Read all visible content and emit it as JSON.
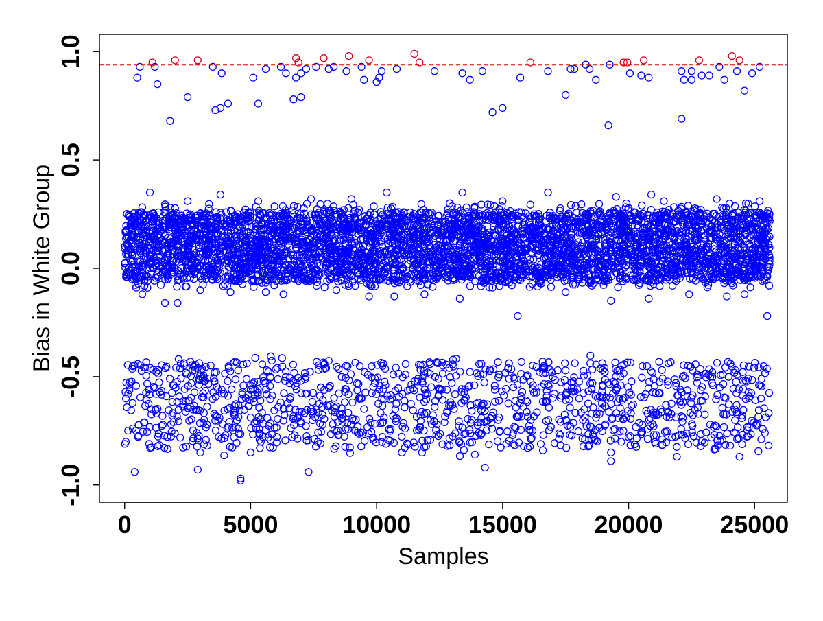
{
  "chart_data": {
    "type": "scatter",
    "title": "",
    "xlabel": "Samples",
    "ylabel": "Bias in White Group",
    "xlim": [
      -1000,
      26300
    ],
    "ylim": [
      -1.08,
      1.08
    ],
    "x_ticks": [
      0,
      5000,
      10000,
      15000,
      20000,
      25000
    ],
    "x_tick_labels": [
      "0",
      "5000",
      "10000",
      "15000",
      "20000",
      "25000"
    ],
    "y_ticks": [
      -1.0,
      -0.5,
      0.0,
      0.5,
      1.0
    ],
    "y_tick_labels": [
      "-1.0",
      "-0.5",
      "0.0",
      "0.5",
      "1.0"
    ],
    "grid": false,
    "marker": "open-circle",
    "threshold": {
      "y": 0.94,
      "color": "#e00000",
      "style": "dashed"
    },
    "colors": {
      "normal": "#0000ff",
      "outlier": "#d00020",
      "threshold": "#e00000"
    },
    "n_samples": 25600,
    "series": [
      {
        "color": "#d00020",
        "points": [
          [
            1100,
            0.95
          ],
          [
            2000,
            0.96
          ],
          [
            2900,
            0.96
          ],
          [
            6800,
            0.97
          ],
          [
            6900,
            0.95
          ],
          [
            7900,
            0.97
          ],
          [
            8900,
            0.98
          ],
          [
            9700,
            0.96
          ],
          [
            11500,
            0.99
          ],
          [
            11700,
            0.95
          ],
          [
            16100,
            0.95
          ],
          [
            19800,
            0.95
          ],
          [
            19950,
            0.95
          ],
          [
            20600,
            0.96
          ],
          [
            22800,
            0.96
          ],
          [
            24100,
            0.98
          ],
          [
            24400,
            0.96
          ]
        ]
      },
      {
        "color": "#0000ff",
        "points": [
          [
            500,
            0.88
          ],
          [
            600,
            0.93
          ],
          [
            1200,
            0.93
          ],
          [
            1300,
            0.85
          ],
          [
            1800,
            0.68
          ],
          [
            2500,
            0.79
          ],
          [
            3500,
            0.93
          ],
          [
            3600,
            0.73
          ],
          [
            3800,
            0.74
          ],
          [
            3850,
            0.9
          ],
          [
            4100,
            0.76
          ],
          [
            5100,
            0.88
          ],
          [
            5300,
            0.76
          ],
          [
            5600,
            0.92
          ],
          [
            6200,
            0.93
          ],
          [
            6400,
            0.9
          ],
          [
            6700,
            0.78
          ],
          [
            6800,
            0.88
          ],
          [
            7000,
            0.79
          ],
          [
            7000,
            0.9
          ],
          [
            7200,
            0.92
          ],
          [
            7600,
            0.93
          ],
          [
            8100,
            0.92
          ],
          [
            8300,
            0.93
          ],
          [
            8800,
            0.91
          ],
          [
            9400,
            0.93
          ],
          [
            9500,
            0.87
          ],
          [
            10000,
            0.86
          ],
          [
            10100,
            0.88
          ],
          [
            10200,
            0.91
          ],
          [
            10800,
            0.92
          ],
          [
            12300,
            0.91
          ],
          [
            13400,
            0.9
          ],
          [
            13700,
            0.87
          ],
          [
            14200,
            0.91
          ],
          [
            14600,
            0.72
          ],
          [
            15000,
            0.74
          ],
          [
            15700,
            0.88
          ],
          [
            16800,
            0.91
          ],
          [
            17500,
            0.8
          ],
          [
            17700,
            0.92
          ],
          [
            17850,
            0.92
          ],
          [
            18300,
            0.94
          ],
          [
            18450,
            0.92
          ],
          [
            18700,
            0.87
          ],
          [
            19200,
            0.66
          ],
          [
            19250,
            0.94
          ],
          [
            20050,
            0.9
          ],
          [
            20500,
            0.89
          ],
          [
            20800,
            0.88
          ],
          [
            22100,
            0.69
          ],
          [
            22100,
            0.91
          ],
          [
            22200,
            0.87
          ],
          [
            22500,
            0.91
          ],
          [
            22500,
            0.87
          ],
          [
            22900,
            0.89
          ],
          [
            23200,
            0.89
          ],
          [
            23600,
            0.93
          ],
          [
            23800,
            0.87
          ],
          [
            24300,
            0.91
          ],
          [
            24600,
            0.82
          ],
          [
            24900,
            0.9
          ],
          [
            25200,
            0.93
          ],
          [
            1000,
            0.35
          ],
          [
            3800,
            0.34
          ],
          [
            10400,
            0.35
          ],
          [
            13400,
            0.35
          ],
          [
            16800,
            0.35
          ],
          [
            20900,
            0.34
          ],
          [
            2500,
            0.31
          ],
          [
            5300,
            0.31
          ],
          [
            9000,
            0.32
          ],
          [
            15000,
            0.31
          ],
          [
            19500,
            0.33
          ],
          [
            23500,
            0.32
          ],
          [
            25200,
            0.31
          ],
          [
            7400,
            0.32
          ],
          [
            12900,
            0.3
          ],
          [
            21400,
            0.31
          ],
          [
            1600,
            -0.16
          ],
          [
            2100,
            -0.16
          ],
          [
            700,
            -0.12
          ],
          [
            3000,
            -0.1
          ],
          [
            4200,
            -0.11
          ],
          [
            6300,
            -0.12
          ],
          [
            8400,
            -0.1
          ],
          [
            10700,
            -0.13
          ],
          [
            13300,
            -0.14
          ],
          [
            15600,
            -0.22
          ],
          [
            19300,
            -0.15
          ],
          [
            20800,
            -0.14
          ],
          [
            23900,
            -0.13
          ],
          [
            24600,
            -0.12
          ],
          [
            25500,
            -0.22
          ],
          [
            11900,
            -0.12
          ],
          [
            17500,
            -0.11
          ],
          [
            22400,
            -0.12
          ],
          [
            5600,
            -0.11
          ],
          [
            9700,
            -0.13
          ],
          [
            400,
            -0.94
          ],
          [
            2900,
            -0.93
          ],
          [
            4600,
            -0.97
          ],
          [
            4600,
            -0.98
          ],
          [
            7300,
            -0.94
          ],
          [
            14300,
            -0.92
          ],
          [
            19300,
            -0.89
          ],
          [
            19300,
            -0.85
          ],
          [
            24400,
            -0.87
          ],
          [
            13900,
            -0.86
          ],
          [
            5000,
            -0.85
          ],
          [
            11000,
            -0.85
          ],
          [
            3000,
            -0.85
          ],
          [
            11800,
            -0.85
          ],
          [
            16600,
            -0.84
          ]
        ]
      }
    ],
    "generated_groups": [
      {
        "color": "#0000ff",
        "x_range": [
          0,
          25600
        ],
        "y_range": [
          -0.06,
          0.26
        ],
        "count": 3800
      },
      {
        "color": "#0000ff",
        "x_range": [
          0,
          25600
        ],
        "y_range": [
          -0.09,
          0.3
        ],
        "count": 900
      },
      {
        "color": "#0000ff",
        "x_range": [
          0,
          25600
        ],
        "y_range": [
          -0.83,
          -0.43
        ],
        "count": 1150
      },
      {
        "color": "#0000ff",
        "x_range": [
          0,
          25600
        ],
        "y_range": [
          -0.87,
          -0.4
        ],
        "count": 120
      }
    ]
  }
}
